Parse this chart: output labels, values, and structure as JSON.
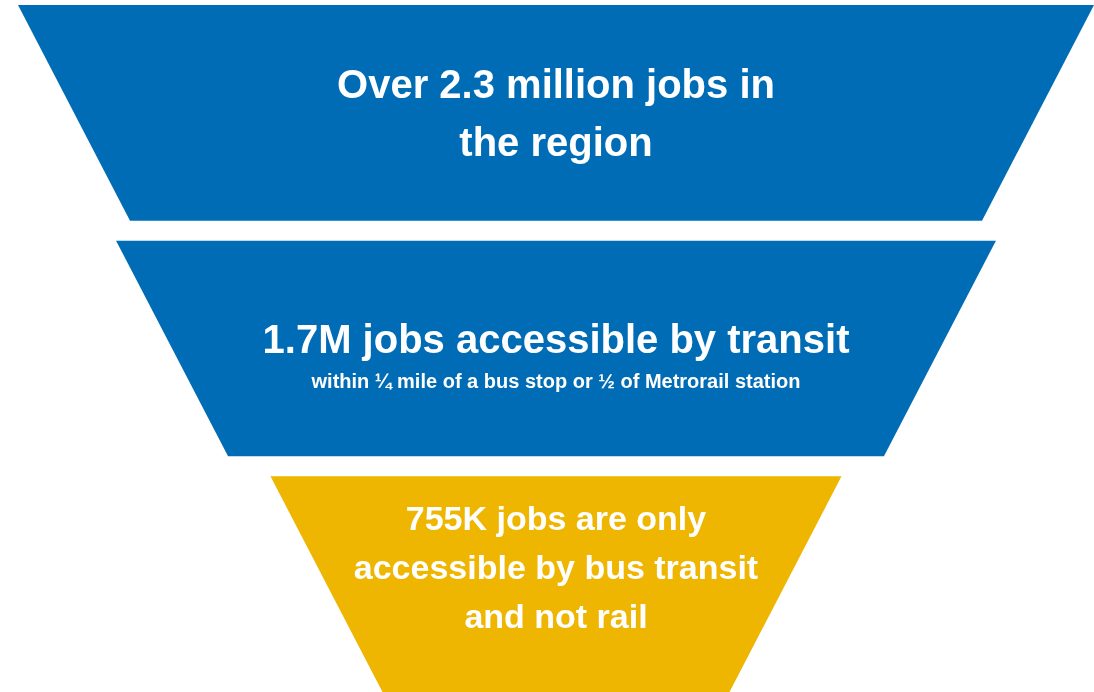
{
  "chart_data": {
    "type": "other",
    "categories": [
      "jobs in the region",
      "jobs accessible by transit",
      "jobs are only accessible by bus transit and not rail"
    ],
    "values": [
      2300000,
      1700000,
      755000
    ],
    "value_labels": [
      "Over 2.3 million",
      "1.7M",
      "755K"
    ],
    "colors": [
      "#006cb5",
      "#006cb5",
      "#eeb600"
    ],
    "annotations": [
      "within ¼ mile of a bus stop or ½ of Metrorail station"
    ]
  }
}
